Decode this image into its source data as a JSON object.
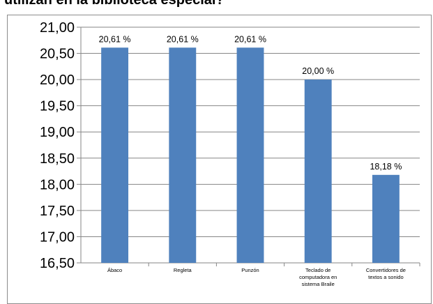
{
  "title": "utilizan en la biblioteca especial?",
  "chart_data": {
    "type": "bar",
    "title": "utilizan en la biblioteca especial?",
    "xlabel": "",
    "ylabel": "",
    "categories": [
      [
        "Ábaco"
      ],
      [
        "Regleta"
      ],
      [
        "Punzón"
      ],
      [
        "Teclado de",
        "computadora en",
        "sistema Braile"
      ],
      [
        "Convertidores de",
        "textos a sonido"
      ]
    ],
    "values": [
      20.61,
      20.61,
      20.61,
      20.0,
      18.18
    ],
    "data_labels": [
      "20,61 %",
      "20,61 %",
      "20,61 %",
      "20,00 %",
      "18,18 %"
    ],
    "ylim": [
      16.5,
      21.0
    ],
    "yticks": [
      16.5,
      17.0,
      17.5,
      18.0,
      18.5,
      19.0,
      19.5,
      20.0,
      20.5,
      21.0
    ],
    "ytick_labels": [
      "16,50",
      "17,00",
      "17,50",
      "18,00",
      "18,50",
      "19,00",
      "19,50",
      "20,00",
      "20,50",
      "21,00"
    ],
    "grid": true,
    "legend": false,
    "bar_color": "#4f81bd",
    "grid_color": "#868686",
    "axis_color": "#868686"
  }
}
